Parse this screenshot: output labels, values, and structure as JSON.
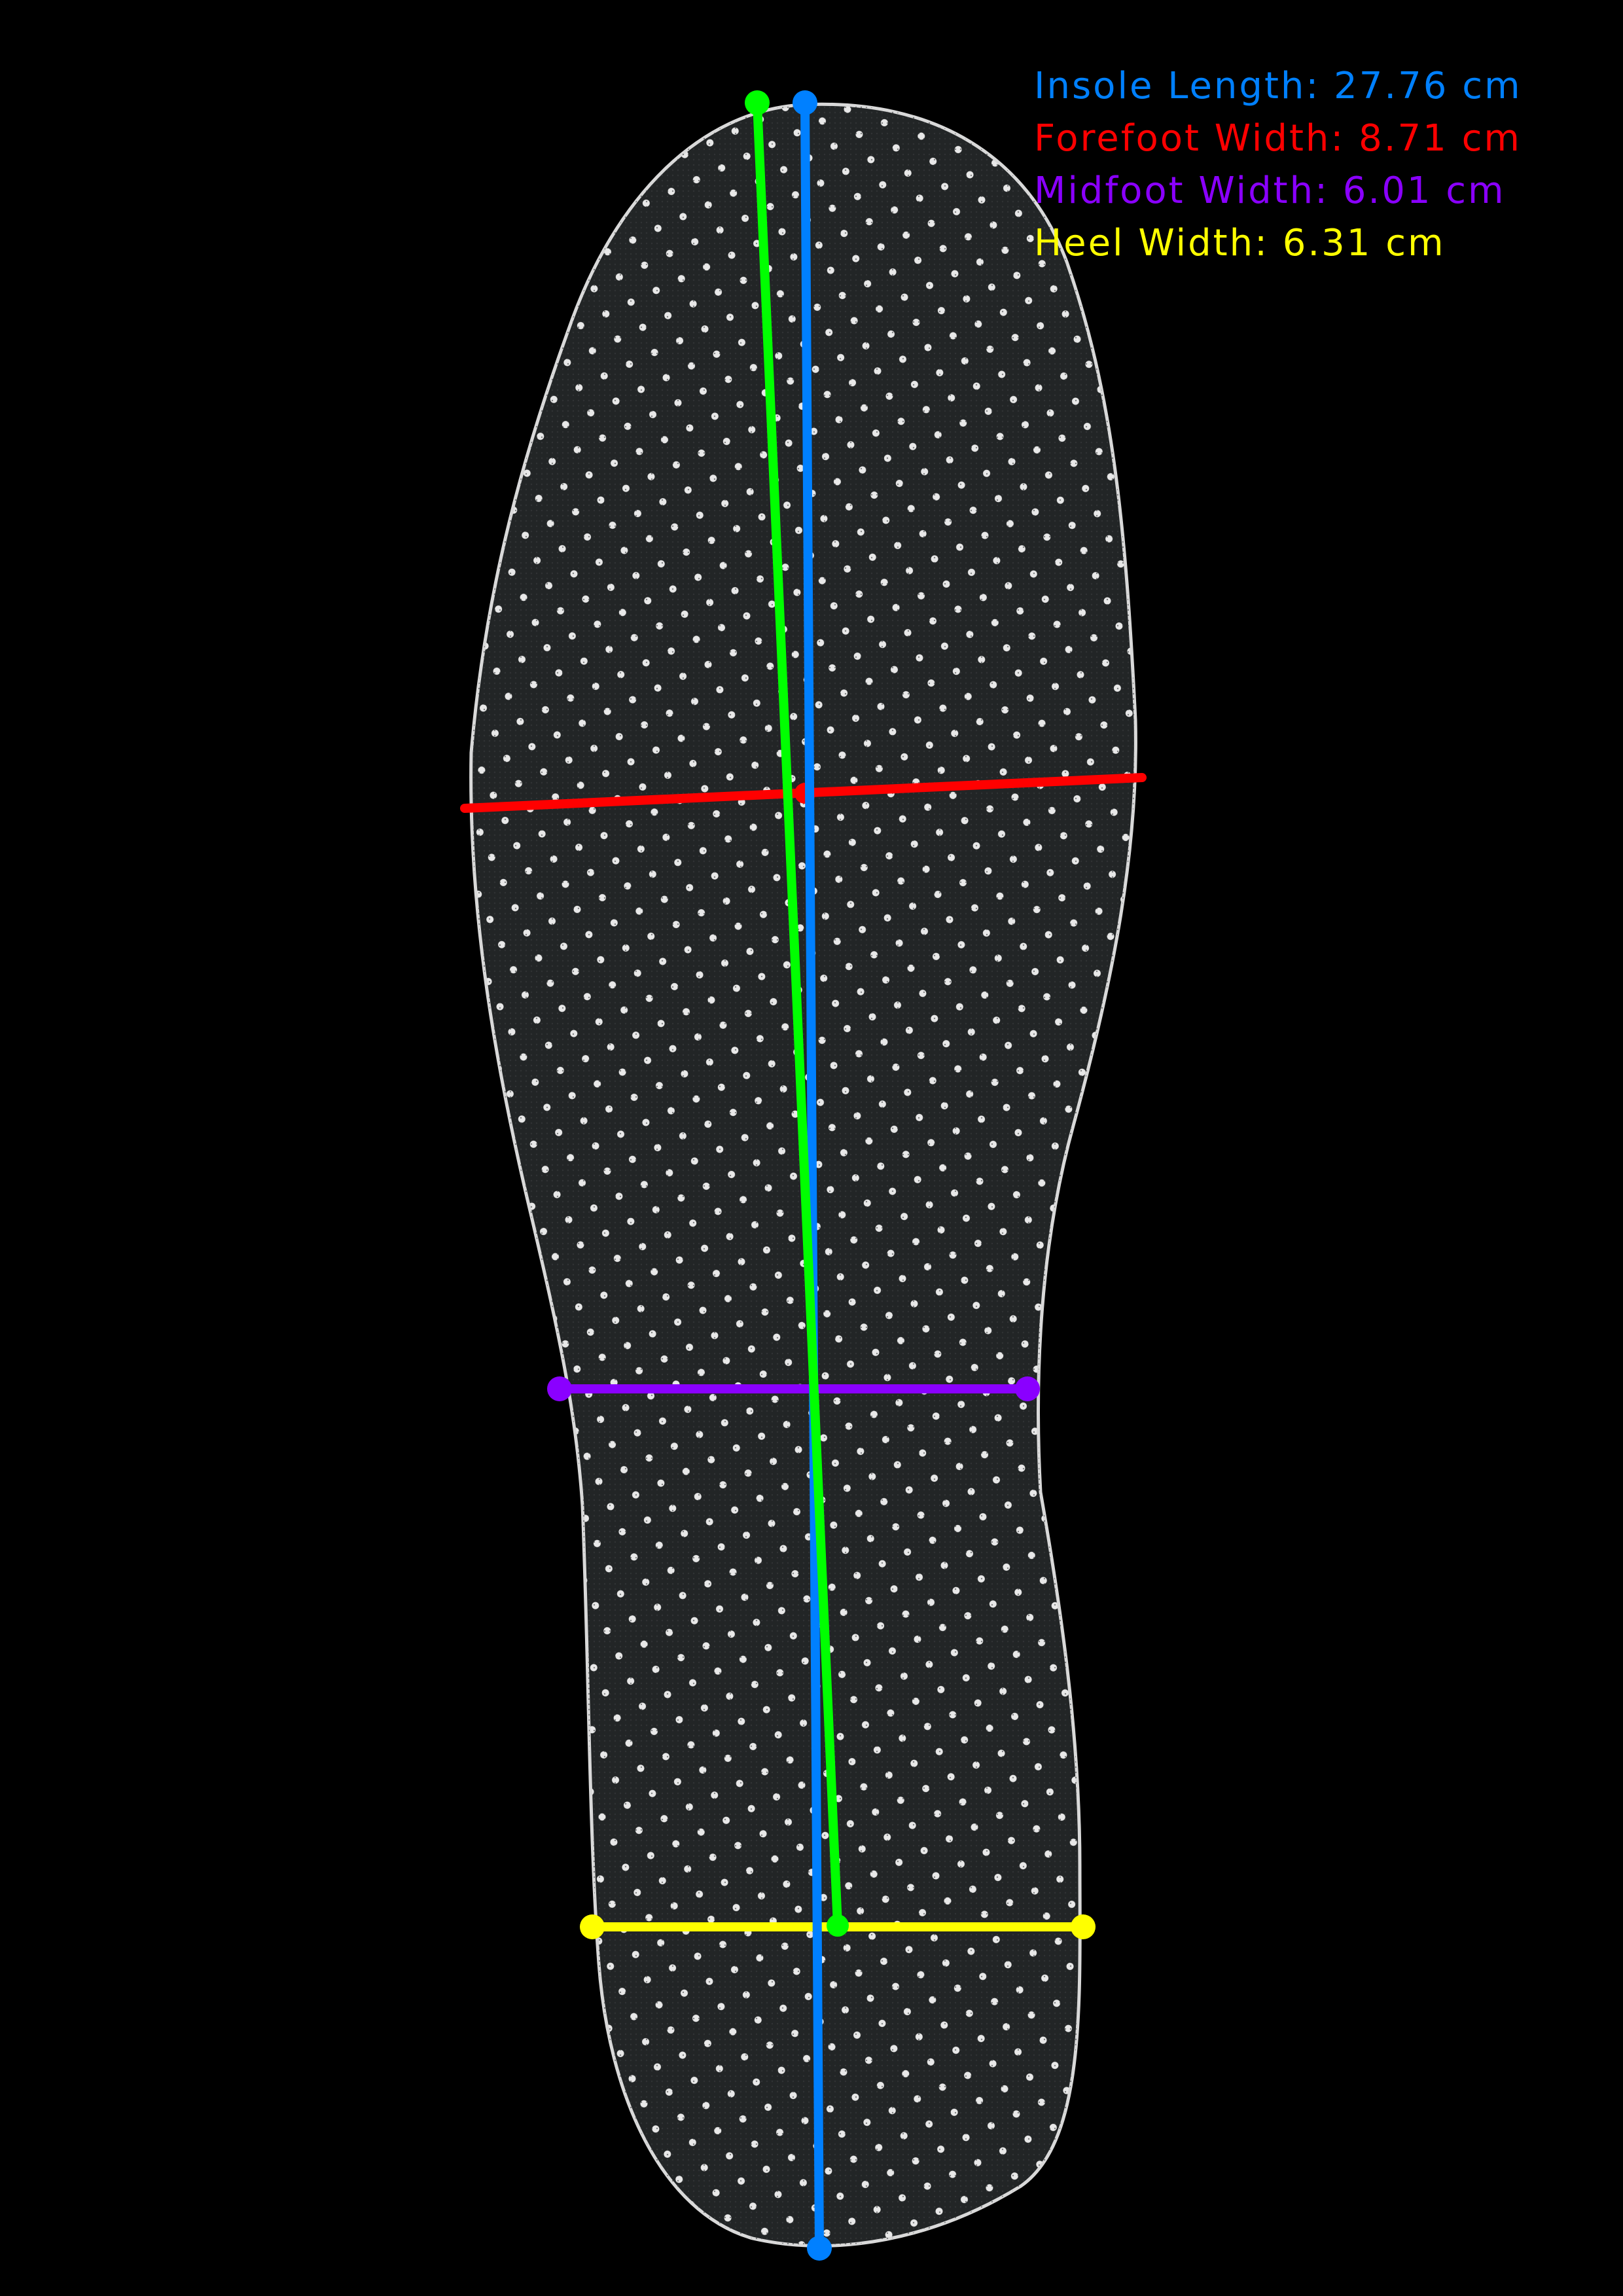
{
  "measurements": [
    {
      "key": "length",
      "label": "Insole Length: 27.76 cm",
      "color": "#0080ff"
    },
    {
      "key": "forefoot",
      "label": "Forefoot Width: 8.71 cm",
      "color": "#ff0000"
    },
    {
      "key": "midfoot",
      "label": "Midfoot Width: 6.01 cm",
      "color": "#8a00ff"
    },
    {
      "key": "heel",
      "label": "Heel Width: 6.31 cm",
      "color": "#ffff00"
    }
  ],
  "axis_color": "#00ff00",
  "insole": {
    "fill": "#222526",
    "outline": "#d9d9d9",
    "perforation": "#e8e8e8"
  }
}
